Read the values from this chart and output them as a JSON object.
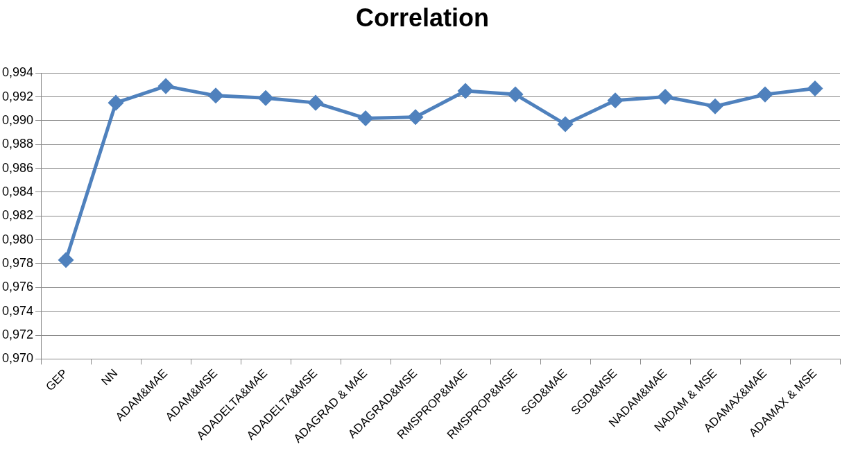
{
  "chart_data": {
    "type": "line",
    "title": "Correlation",
    "categories": [
      "GEP",
      "NN",
      "ADAM&MAE",
      "ADAM&MSE",
      "ADADELTA&MAE",
      "ADADELTA&MSE",
      "ADAGRAD & MAE",
      "ADAGRAD&MSE",
      "RMSPROP&MAE",
      "RMSPROP&MSE",
      "SGD&MAE",
      "SGD&MSE",
      "NADAM&MAE",
      "NADAM & MSE",
      "ADAMAX&MAE",
      "ADAMAX & MSE"
    ],
    "series": [
      {
        "color": "#4f81bd",
        "values": [
          0.9783,
          0.9915,
          0.9929,
          0.9921,
          0.9919,
          0.9915,
          0.9902,
          0.9903,
          0.9925,
          0.9922,
          0.9897,
          0.9917,
          0.992,
          0.9912,
          0.9922,
          0.9927
        ]
      }
    ],
    "ylim": [
      0.97,
      0.994
    ],
    "yticks": [
      {
        "value": 0.97,
        "label": "0,970"
      },
      {
        "value": 0.972,
        "label": "0,972"
      },
      {
        "value": 0.974,
        "label": "0,974"
      },
      {
        "value": 0.976,
        "label": "0,976"
      },
      {
        "value": 0.978,
        "label": "0,978"
      },
      {
        "value": 0.98,
        "label": "0,980"
      },
      {
        "value": 0.982,
        "label": "0,982"
      },
      {
        "value": 0.984,
        "label": "0,984"
      },
      {
        "value": 0.986,
        "label": "0,986"
      },
      {
        "value": 0.988,
        "label": "0,988"
      },
      {
        "value": 0.99,
        "label": "0,990"
      },
      {
        "value": 0.992,
        "label": "0,992"
      },
      {
        "value": 0.994,
        "label": "0,994"
      }
    ],
    "grid": "y",
    "legend": false,
    "marker": "diamond",
    "line_style": "solid"
  }
}
